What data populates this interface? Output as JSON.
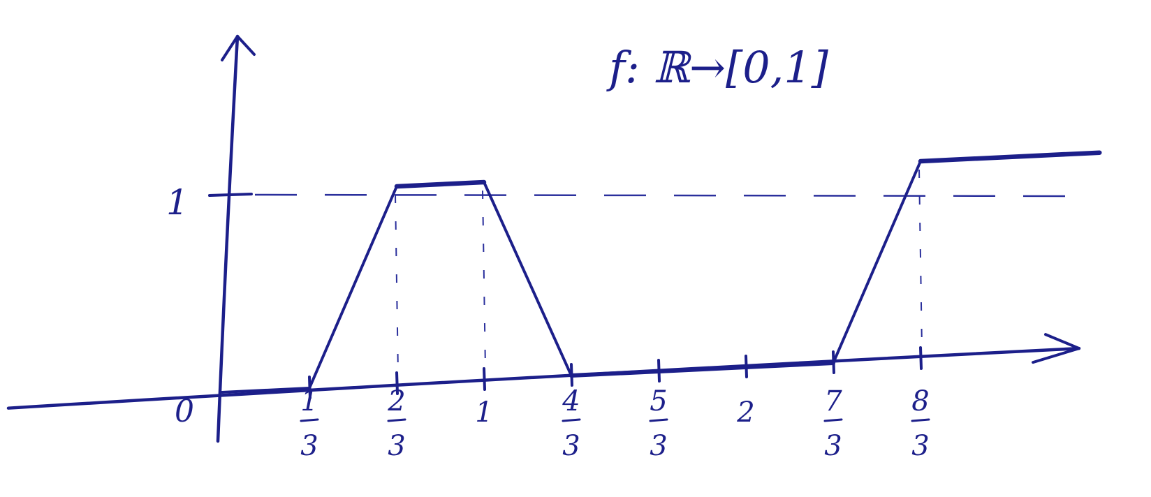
{
  "ink_color": "#1c1f8a",
  "paper_color": "#ffffff",
  "chart_data": {
    "type": "line",
    "title": "f: ℝ→[0,1]",
    "xlabel": "",
    "ylabel": "",
    "grid": false,
    "legend": "none",
    "xlim": [
      -1,
      3.35
    ],
    "ylim": [
      0,
      1.3
    ],
    "series": [
      {
        "x": [
          0,
          0.3333,
          0.6667,
          1,
          1.3333,
          1.6667,
          2,
          2.3333,
          2.6667,
          3.35
        ],
        "y": [
          0,
          0,
          1,
          1,
          0,
          0,
          0,
          0,
          1,
          1
        ]
      }
    ],
    "x_ticks": [
      {
        "value": 0.3333,
        "num": "1",
        "den": "3"
      },
      {
        "value": 0.6667,
        "num": "2",
        "den": "3"
      },
      {
        "value": 1,
        "label": "1"
      },
      {
        "value": 1.3333,
        "num": "4",
        "den": "3"
      },
      {
        "value": 1.6667,
        "num": "5",
        "den": "3"
      },
      {
        "value": 2,
        "label": "2"
      },
      {
        "value": 2.3333,
        "num": "7",
        "den": "3"
      },
      {
        "value": 2.6667,
        "num": "8",
        "den": "3"
      }
    ],
    "y_ticks": [
      {
        "value": 1,
        "label": "1"
      }
    ],
    "origin_label": "0",
    "guide_lines_x": [
      0.6667,
      1,
      2.6667
    ],
    "guide_line_y": 1
  }
}
